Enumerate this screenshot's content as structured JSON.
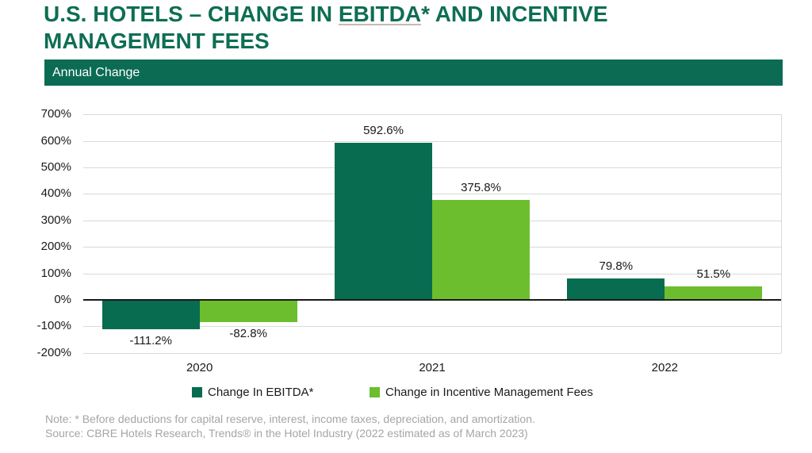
{
  "page": {
    "title_part1": "U.S. HOTELS – CHANGE IN ",
    "title_ebitda": "EBITDA",
    "title_part2": "* AND INCENTIVE MANAGEMENT FEES",
    "banner": "Annual Change"
  },
  "chart_data": {
    "type": "bar",
    "title": "U.S. HOTELS – CHANGE IN EBITDA* AND INCENTIVE MANAGEMENT FEES",
    "subtitle": "Annual Change",
    "categories": [
      "2020",
      "2021",
      "2022"
    ],
    "series": [
      {
        "name": "Change In EBITDA*",
        "color": "#076C50",
        "values": [
          -111.2,
          592.6,
          79.8
        ],
        "labels": [
          "-111.2%",
          "592.6%",
          "79.8%"
        ]
      },
      {
        "name": "Change in Incentive Management Fees",
        "color": "#6CBE2E",
        "values": [
          -82.8,
          375.8,
          51.5
        ],
        "labels": [
          "-82.8%",
          "375.8%",
          "51.5%"
        ]
      }
    ],
    "xlabel": "",
    "ylabel": "",
    "ylim": [
      -200,
      700
    ],
    "ytick_step": 100,
    "ytick_suffix": "%",
    "grid": true,
    "legend_position": "bottom",
    "colors": {
      "grid": "#D9D9D9",
      "axis": "#1A1A1A",
      "title_green": "#0E6E53",
      "banner_green": "#0C6B53"
    }
  },
  "footnote": {
    "note": "Note: * Before deductions for capital reserve, interest, income taxes, depreciation, and amortization.",
    "source": "Source: CBRE Hotels Research, Trends® in the Hotel Industry (2022 estimated as of March 2023)"
  }
}
